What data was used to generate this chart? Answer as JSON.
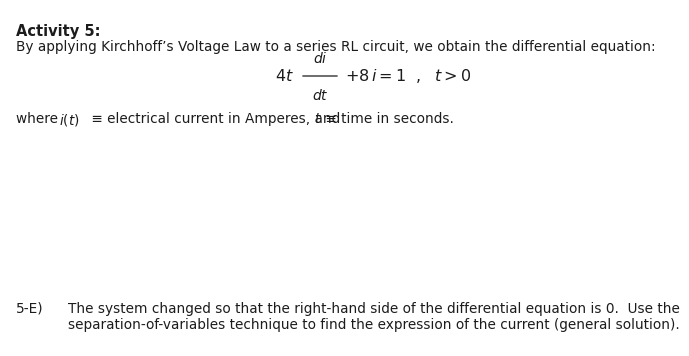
{
  "background_color": "#ffffff",
  "title_bold": "Activity 5:",
  "line1": "By applying Kirchhoff’s Voltage Law to a series RL circuit, we obtain the differential equation:",
  "bottom_label": "5-E)",
  "bottom_text1": "The system changed so that the right-hand side of the differential equation is 0.  Use the",
  "bottom_text2": "separation-of-variables technique to find the expression of the current (general solution).",
  "font_size_title": 10.5,
  "font_size_body": 9.8,
  "font_size_eq": 11.5,
  "text_color": "#1c1c1c"
}
